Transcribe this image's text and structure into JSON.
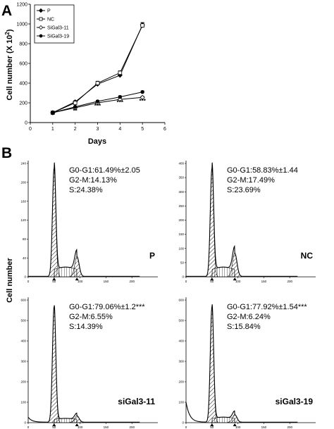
{
  "panel_labels": [
    "A",
    "B"
  ],
  "chart_data": [
    {
      "type": "line",
      "panel": "A",
      "xlabel": "Days",
      "ylabel": "Cell number (X 10",
      "ylabel_sup": "2",
      "ylabel_close": ")",
      "xlim": [
        0,
        6
      ],
      "ylim": [
        0,
        1200
      ],
      "x_ticks": [
        0,
        1,
        2,
        3,
        4,
        5,
        6
      ],
      "y_ticks": [
        0,
        200,
        400,
        600,
        800,
        1000,
        1200
      ],
      "grid": false,
      "legend_position": "top-left",
      "x": [
        1,
        2,
        3,
        4,
        5
      ],
      "series": [
        {
          "name": "P",
          "marker": "filled-diamond",
          "values": [
            100,
            210,
            390,
            480,
            990
          ],
          "errors": [
            8,
            12,
            20,
            20,
            25
          ]
        },
        {
          "name": "NC",
          "marker": "open-square",
          "values": [
            100,
            200,
            400,
            505,
            985
          ],
          "errors": [
            8,
            12,
            20,
            20,
            25
          ]
        },
        {
          "name": "SiGal3-11",
          "marker": "open-diamond",
          "values": [
            100,
            150,
            200,
            235,
            255
          ],
          "errors": [
            6,
            8,
            10,
            12,
            12
          ]
        },
        {
          "name": "SiGal3-19",
          "marker": "filled-circle",
          "values": [
            100,
            160,
            215,
            260,
            310
          ],
          "errors": [
            6,
            8,
            10,
            12,
            12
          ]
        }
      ],
      "significance": [
        {
          "x": 2,
          "y": 100,
          "text": "**"
        },
        {
          "x": 3,
          "y": 150,
          "text": "***"
        },
        {
          "x": 4,
          "y": 185,
          "text": "***"
        },
        {
          "x": 5,
          "y": 200,
          "text": "***"
        }
      ]
    },
    {
      "type": "area",
      "panel": "B",
      "ylabel": "Cell number",
      "x_tick_labels": [
        "0",
        "50",
        "100",
        "150",
        "200"
      ],
      "histograms": [
        {
          "name": "P",
          "y_tick_labels": [
            "0",
            "40",
            "80",
            "120",
            "160",
            "200",
            "240"
          ],
          "annotation": [
            "G0-G1:61.49%±2.05",
            "G2-M:14.13%",
            "S:24.38%"
          ],
          "g1_peak": 0.93,
          "g2_peak": 0.17,
          "s_level": 0.08,
          "debris": 0.0
        },
        {
          "name": "NC",
          "y_tick_labels": [
            "0",
            "50",
            "100",
            "150",
            "200",
            "250",
            "300",
            "350",
            "400"
          ],
          "annotation": [
            "G0-G1:58.83%±1.44",
            "G2-M:17.49%",
            "S:23.69%"
          ],
          "g1_peak": 0.93,
          "g2_peak": 0.2,
          "s_level": 0.08,
          "debris": 0.0
        },
        {
          "name": "siGal3-11",
          "y_tick_labels": [
            "0",
            "100",
            "200",
            "300",
            "400",
            "500",
            "600"
          ],
          "annotation": [
            "G0-G1:79.06%±1.2***",
            "G2-M:6.55%",
            "S:14.39%"
          ],
          "g1_peak": 0.92,
          "g2_peak": 0.05,
          "s_level": 0.03,
          "debris": 0.04
        },
        {
          "name": "siGal3-19",
          "y_tick_labels": [
            "0",
            "100",
            "200",
            "300",
            "400",
            "500",
            "600"
          ],
          "annotation": [
            "G0-G1:77.92%±1.54***",
            "G2-M:6.24%",
            "S:15.84%"
          ],
          "g1_peak": 0.92,
          "g2_peak": 0.06,
          "s_level": 0.04,
          "debris": 0.16
        }
      ]
    }
  ]
}
